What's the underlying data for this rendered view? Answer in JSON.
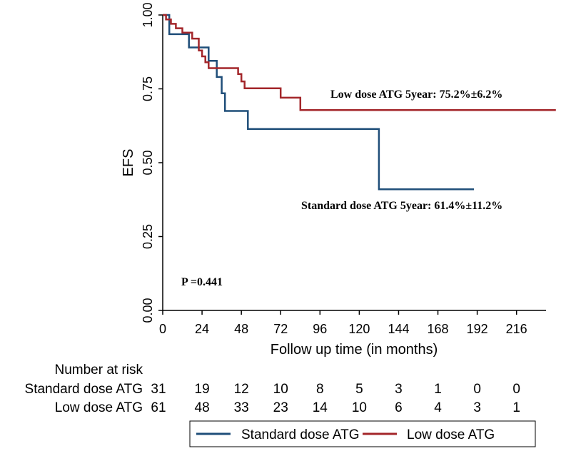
{
  "chart_data": {
    "type": "line",
    "subtype": "kaplan-meier",
    "ylabel": "EFS",
    "xlabel": "Follow up time (in months)",
    "xlim": [
      0,
      234
    ],
    "ylim": [
      0,
      1
    ],
    "x_ticks": [
      0,
      24,
      48,
      72,
      96,
      120,
      144,
      168,
      192,
      216
    ],
    "y_ticks": [
      "0.00",
      "0.25",
      "0.50",
      "0.75",
      "1.00"
    ],
    "grid": false,
    "series": [
      {
        "name": "Standard dose ATG",
        "color": "#1f4e79",
        "points": [
          [
            0,
            1.0
          ],
          [
            4,
            1.0
          ],
          [
            4,
            0.935
          ],
          [
            16,
            0.935
          ],
          [
            16,
            0.89
          ],
          [
            28,
            0.89
          ],
          [
            28,
            0.845
          ],
          [
            33,
            0.845
          ],
          [
            33,
            0.79
          ],
          [
            36,
            0.79
          ],
          [
            36,
            0.735
          ],
          [
            38,
            0.735
          ],
          [
            38,
            0.675
          ],
          [
            52,
            0.675
          ],
          [
            52,
            0.614
          ],
          [
            132,
            0.614
          ],
          [
            132,
            0.41
          ],
          [
            190,
            0.41
          ]
        ]
      },
      {
        "name": "Low dose ATG",
        "color": "#a3262a",
        "points": [
          [
            0,
            1.0
          ],
          [
            2,
            1.0
          ],
          [
            2,
            0.985
          ],
          [
            5,
            0.985
          ],
          [
            5,
            0.97
          ],
          [
            8,
            0.97
          ],
          [
            8,
            0.955
          ],
          [
            12,
            0.955
          ],
          [
            12,
            0.94
          ],
          [
            18,
            0.94
          ],
          [
            18,
            0.92
          ],
          [
            22,
            0.92
          ],
          [
            22,
            0.88
          ],
          [
            24,
            0.88
          ],
          [
            24,
            0.86
          ],
          [
            26,
            0.86
          ],
          [
            26,
            0.84
          ],
          [
            28,
            0.84
          ],
          [
            28,
            0.82
          ],
          [
            46,
            0.82
          ],
          [
            46,
            0.8
          ],
          [
            48,
            0.8
          ],
          [
            48,
            0.775
          ],
          [
            50,
            0.775
          ],
          [
            50,
            0.752
          ],
          [
            72,
            0.752
          ],
          [
            72,
            0.72
          ],
          [
            84,
            0.72
          ],
          [
            84,
            0.678
          ],
          [
            240,
            0.678
          ]
        ]
      }
    ],
    "annotations": {
      "low_dose": "Low dose ATG 5year: 75.2%±6.2%",
      "standard_dose": "Standard dose ATG 5year: 61.4%±11.2%",
      "p_value": "P =0.441"
    },
    "risk_table": {
      "title": "Number at risk",
      "rows": [
        {
          "label": "Standard dose ATG",
          "values": [
            31,
            19,
            12,
            10,
            8,
            5,
            3,
            1,
            0,
            0
          ]
        },
        {
          "label": "Low dose ATG",
          "values": [
            61,
            48,
            33,
            23,
            14,
            10,
            6,
            4,
            3,
            1
          ]
        }
      ]
    },
    "legend": {
      "placement": "bottom",
      "entries": [
        "Standard dose ATG",
        "Low dose ATG"
      ]
    }
  }
}
